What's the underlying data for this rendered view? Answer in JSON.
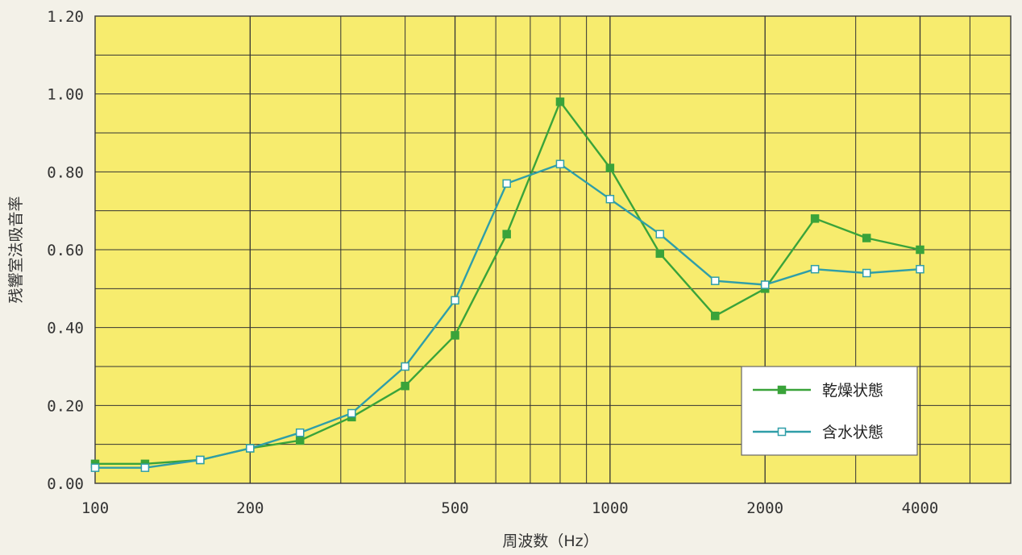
{
  "chart_data": {
    "type": "line",
    "title": "",
    "xlabel": "周波数（Hz）",
    "ylabel": "残響室法吸音率",
    "x_scale": "log",
    "xlim": [
      100,
      6000
    ],
    "ylim": [
      0,
      1.2
    ],
    "x_tick_values": [
      100,
      200,
      500,
      1000,
      2000,
      4000
    ],
    "x_tick_labels": [
      "100",
      "200",
      "500",
      "1000",
      "2000",
      "4000"
    ],
    "y_tick_values": [
      0,
      0.2,
      0.4,
      0.6,
      0.8,
      1.0,
      1.2
    ],
    "y_tick_labels": [
      "0.00",
      "0.20",
      "0.40",
      "0.60",
      "0.80",
      "1.00",
      "1.20"
    ],
    "grid": true,
    "legend_position": "bottom-right",
    "plot_background": "#f7ec6e",
    "x": [
      100,
      125,
      160,
      200,
      250,
      315,
      400,
      500,
      630,
      800,
      1000,
      1250,
      1600,
      2000,
      2500,
      3150,
      4000
    ],
    "series": [
      {
        "name": "乾燥状態",
        "color": "#3aa33a",
        "marker": "filled-square",
        "values": [
          0.05,
          0.05,
          0.06,
          0.09,
          0.11,
          0.17,
          0.25,
          0.38,
          0.64,
          0.98,
          0.81,
          0.59,
          0.43,
          0.5,
          0.68,
          0.63,
          0.6
        ]
      },
      {
        "name": "含水状態",
        "color": "#2f9ea8",
        "marker": "open-square",
        "values": [
          0.04,
          0.04,
          0.06,
          0.09,
          0.13,
          0.18,
          0.3,
          0.47,
          0.77,
          0.82,
          0.73,
          0.64,
          0.52,
          0.51,
          0.55,
          0.54,
          0.55
        ]
      }
    ]
  }
}
